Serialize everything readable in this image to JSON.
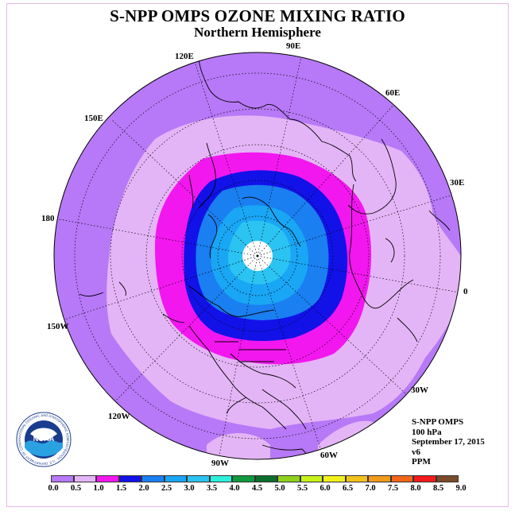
{
  "header": {
    "title": "S-NPP OMPS OZONE MIXING RATIO",
    "subtitle": "Northern Hemisphere"
  },
  "map": {
    "projection": "polar stereographic, North Pole",
    "longitude_labels": {
      "lon_120e": "120E",
      "lon_90e": "90E",
      "lon_60e": "60E",
      "lon_150e": "150E",
      "lon_30e": "30E",
      "lon_180": "180",
      "lon_0": "0",
      "lon_150w": "150W",
      "lon_30w": "30W",
      "lon_120w": "120W",
      "lon_60w": "60W",
      "lon_90w": "90W"
    },
    "colors": {
      "band_0_5": "#b779f7",
      "band_0_5_1_0": "#e4b5f6",
      "band_1_0_1_5": "#f217ef",
      "band_1_5_2_0": "#1212e8",
      "band_2_0_2_5": "#1a7ff0",
      "band_2_5_3_0": "#19a6f5",
      "band_3_0_3_5": "#2bc3f2",
      "no_data_pole": "#ffffff"
    }
  },
  "info": {
    "instrument": "S-NPP OMPS",
    "level": "100 hPa",
    "date": "September 17, 2015",
    "version": "v6",
    "units": "PPM"
  },
  "logo": {
    "text": "NOAA",
    "ring_text": "NATIONAL OCEANIC AND ATMOSPHERIC ADMINISTRATION · U.S. DEPARTMENT OF COMMERCE"
  },
  "colorbar": {
    "colors": [
      "#b779f7",
      "#e4b5f6",
      "#f217ef",
      "#1212e8",
      "#1a7ff0",
      "#19a6f5",
      "#2bc3f2",
      "#2cf0da",
      "#0f9a3e",
      "#0b6e2c",
      "#8fd11c",
      "#c7f21a",
      "#f2f21a",
      "#f2c21a",
      "#f29a1a",
      "#f2661a",
      "#f21a1a",
      "#7a4a2a"
    ],
    "tick_labels": [
      "0.0",
      "0.5",
      "1.0",
      "1.5",
      "2.0",
      "2.5",
      "3.0",
      "3.5",
      "4.0",
      "4.5",
      "5.0",
      "5.5",
      "6.0",
      "6.5",
      "7.0",
      "7.5",
      "8.0",
      "8.5",
      "9.0"
    ]
  }
}
